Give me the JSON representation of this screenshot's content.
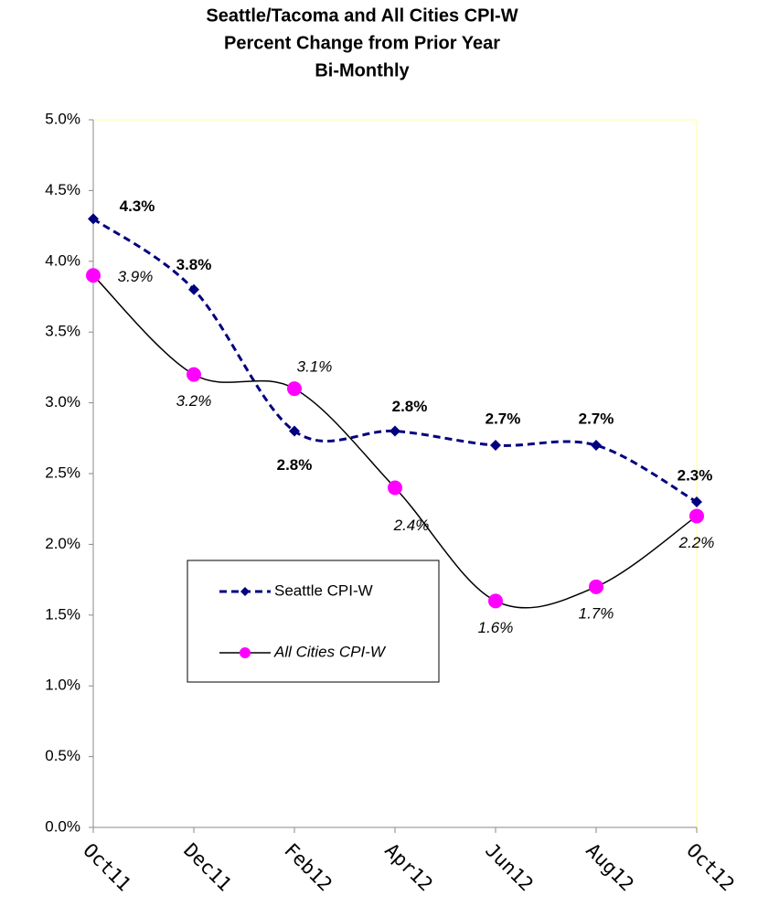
{
  "chart_data": {
    "type": "line",
    "title": [
      "Seattle/Tacoma and All Cities CPI-W",
      "Percent Change from Prior Year",
      "Bi-Monthly"
    ],
    "categories": [
      "Oct11",
      "Dec11",
      "Feb12",
      "Apr12",
      "Jun12",
      "Aug12",
      "Oct12"
    ],
    "series": [
      {
        "name": "Seattle CPI-W",
        "color": "#000080",
        "values": [
          4.3,
          3.8,
          2.8,
          2.8,
          2.7,
          2.7,
          2.3
        ],
        "value_labels": [
          "4.3%",
          "3.8%",
          "2.8%",
          "2.8%",
          "2.7%",
          "2.7%",
          "2.3%"
        ]
      },
      {
        "name": "All Cities CPI-W",
        "color": "#FF00FF",
        "values": [
          3.9,
          3.2,
          3.1,
          2.4,
          1.6,
          1.7,
          2.2
        ],
        "value_labels": [
          "3.9%",
          "3.2%",
          "3.1%",
          "2.4%",
          "1.6%",
          "1.7%",
          "2.2%"
        ]
      }
    ],
    "ylim": [
      0,
      5
    ],
    "yticks": [
      {
        "value": 0,
        "label": "0.0%"
      },
      {
        "value": 0.5,
        "label": "0.5%"
      },
      {
        "value": 1,
        "label": "1.0%"
      },
      {
        "value": 1.5,
        "label": "1.5%"
      },
      {
        "value": 2,
        "label": "2.0%"
      },
      {
        "value": 2.5,
        "label": "2.5%"
      },
      {
        "value": 3,
        "label": "3.0%"
      },
      {
        "value": 3.5,
        "label": "3.5%"
      },
      {
        "value": 4,
        "label": "4.0%"
      },
      {
        "value": 4.5,
        "label": "4.5%"
      },
      {
        "value": 5,
        "label": "5.0%"
      }
    ]
  }
}
